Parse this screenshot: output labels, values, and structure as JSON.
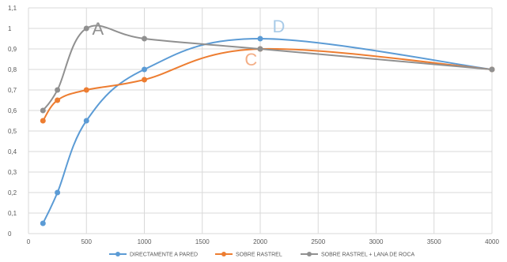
{
  "chart_data": {
    "type": "line",
    "title": "",
    "xlabel": "",
    "ylabel": "",
    "xlim": [
      0,
      4000
    ],
    "ylim": [
      0,
      1.1
    ],
    "x_ticks": [
      0,
      500,
      1000,
      1500,
      2000,
      2500,
      3000,
      3500,
      4000
    ],
    "y_ticks": [
      0,
      0.1,
      0.2,
      0.3,
      0.4,
      0.5,
      0.6,
      0.7,
      0.8,
      0.9,
      1,
      1.1
    ],
    "x_tick_labels": [
      "0",
      "500",
      "1000",
      "1500",
      "2000",
      "2500",
      "3000",
      "3500",
      "4000"
    ],
    "y_tick_labels": [
      "0",
      "0,1",
      "0,2",
      "0,3",
      "0,4",
      "0,5",
      "0,6",
      "0,7",
      "0,8",
      "0,9",
      "1",
      "1,1"
    ],
    "grid": true,
    "legend_position": "bottom",
    "series": [
      {
        "name": "DIRECTAMENTE A PARED",
        "color": "#5b9bd5",
        "x": [
          125,
          250,
          500,
          1000,
          2000,
          4000
        ],
        "y": [
          0.05,
          0.2,
          0.55,
          0.8,
          0.95,
          0.8
        ]
      },
      {
        "name": "SOBRE RASTREL",
        "color": "#ed7d31",
        "x": [
          125,
          250,
          500,
          1000,
          2000,
          4000
        ],
        "y": [
          0.55,
          0.65,
          0.7,
          0.75,
          0.9,
          0.8
        ]
      },
      {
        "name": "SOBRE RASTREL + LANA DE ROCA",
        "color": "#909090",
        "x": [
          125,
          250,
          500,
          1000,
          2000,
          4000
        ],
        "y": [
          0.6,
          0.7,
          1.0,
          0.95,
          0.9,
          0.8
        ]
      }
    ],
    "annotations": [
      {
        "text": "A",
        "color": "#909090",
        "x": 600,
        "y": 0.97
      },
      {
        "text": "D",
        "color": "#a9cbe8",
        "x": 2160,
        "y": 0.98
      },
      {
        "text": "C",
        "color": "#f3ae86",
        "x": 1920,
        "y": 0.82
      }
    ]
  }
}
